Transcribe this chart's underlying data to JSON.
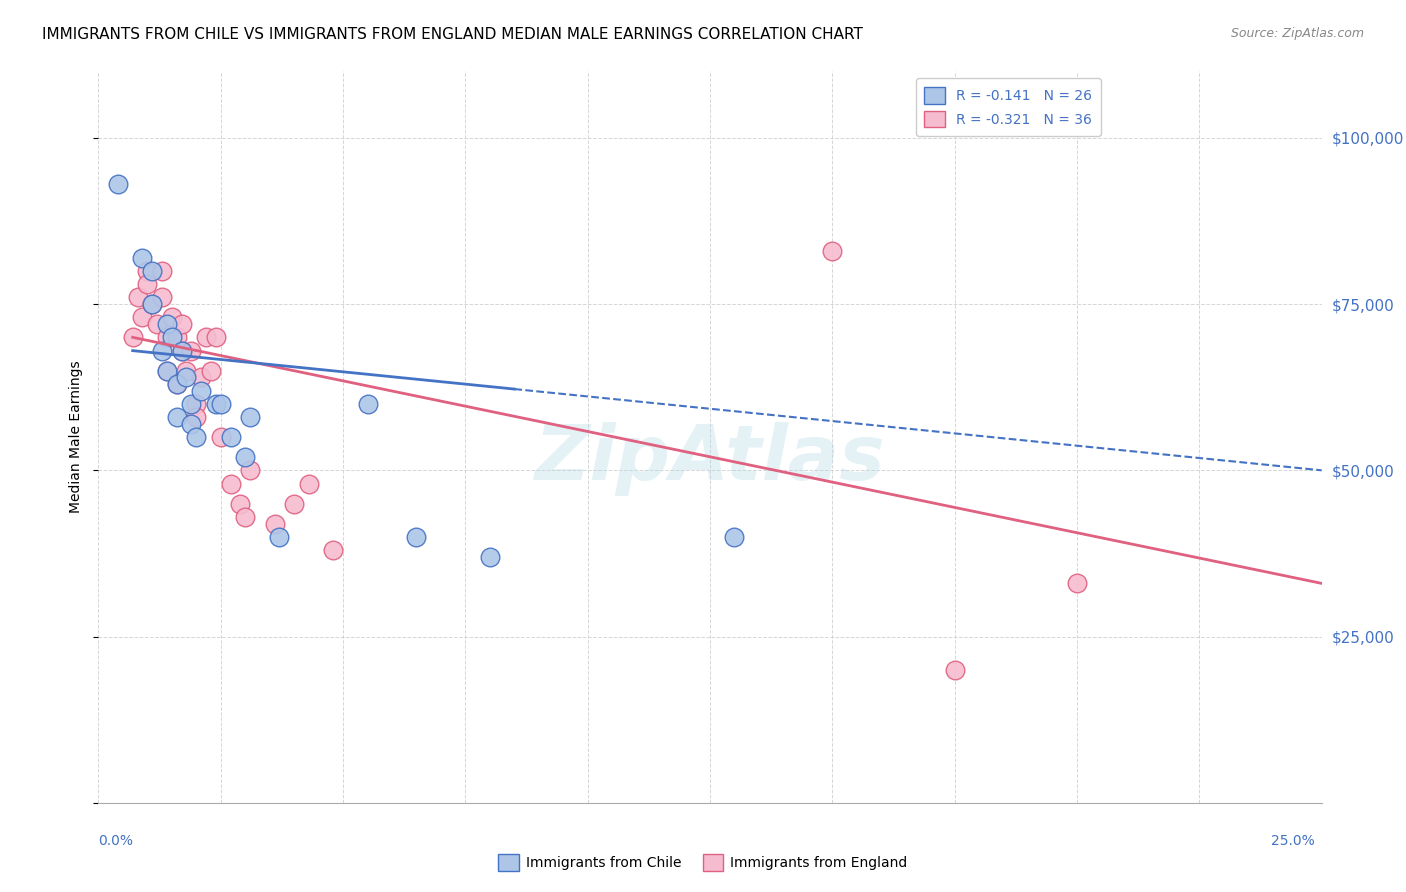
{
  "title": "IMMIGRANTS FROM CHILE VS IMMIGRANTS FROM ENGLAND MEDIAN MALE EARNINGS CORRELATION CHART",
  "source": "Source: ZipAtlas.com",
  "ylabel": "Median Male Earnings",
  "xlim": [
    0.0,
    0.25
  ],
  "ylim": [
    0,
    110000
  ],
  "watermark": "ZipAtlas",
  "chile_R": "-0.141",
  "chile_N": "26",
  "england_R": "-0.321",
  "england_N": "36",
  "chile_color": "#adc6e8",
  "england_color": "#f5bcd0",
  "chile_line_color": "#4472c4",
  "england_line_color": "#e06080",
  "chile_x": [
    0.004,
    0.009,
    0.011,
    0.011,
    0.013,
    0.014,
    0.014,
    0.015,
    0.016,
    0.016,
    0.017,
    0.018,
    0.019,
    0.019,
    0.02,
    0.021,
    0.024,
    0.025,
    0.027,
    0.03,
    0.031,
    0.037,
    0.055,
    0.065,
    0.08,
    0.13
  ],
  "chile_y": [
    93000,
    82000,
    80000,
    75000,
    68000,
    65000,
    72000,
    70000,
    63000,
    58000,
    68000,
    64000,
    60000,
    57000,
    55000,
    62000,
    60000,
    60000,
    55000,
    52000,
    58000,
    40000,
    60000,
    40000,
    37000,
    40000
  ],
  "england_x": [
    0.007,
    0.008,
    0.009,
    0.01,
    0.01,
    0.011,
    0.012,
    0.013,
    0.013,
    0.014,
    0.014,
    0.015,
    0.016,
    0.016,
    0.017,
    0.017,
    0.018,
    0.019,
    0.02,
    0.02,
    0.021,
    0.022,
    0.023,
    0.024,
    0.025,
    0.027,
    0.029,
    0.03,
    0.031,
    0.036,
    0.04,
    0.043,
    0.048,
    0.15,
    0.175,
    0.2
  ],
  "england_y": [
    70000,
    76000,
    73000,
    80000,
    78000,
    75000,
    72000,
    80000,
    76000,
    70000,
    65000,
    73000,
    70000,
    63000,
    72000,
    68000,
    65000,
    68000,
    60000,
    58000,
    64000,
    70000,
    65000,
    70000,
    55000,
    48000,
    45000,
    43000,
    50000,
    42000,
    45000,
    48000,
    38000,
    83000,
    20000,
    33000
  ],
  "chile_line_x0": 0.007,
  "chile_line_y0": 68000,
  "chile_line_x1": 0.25,
  "chile_line_y1": 50000,
  "england_line_x0": 0.007,
  "england_line_y0": 70000,
  "england_line_x1": 0.25,
  "england_line_y1": 33000,
  "title_fontsize": 11,
  "source_fontsize": 9,
  "legend_fontsize": 10,
  "axis_label_fontsize": 10,
  "tick_label_fontsize": 10
}
